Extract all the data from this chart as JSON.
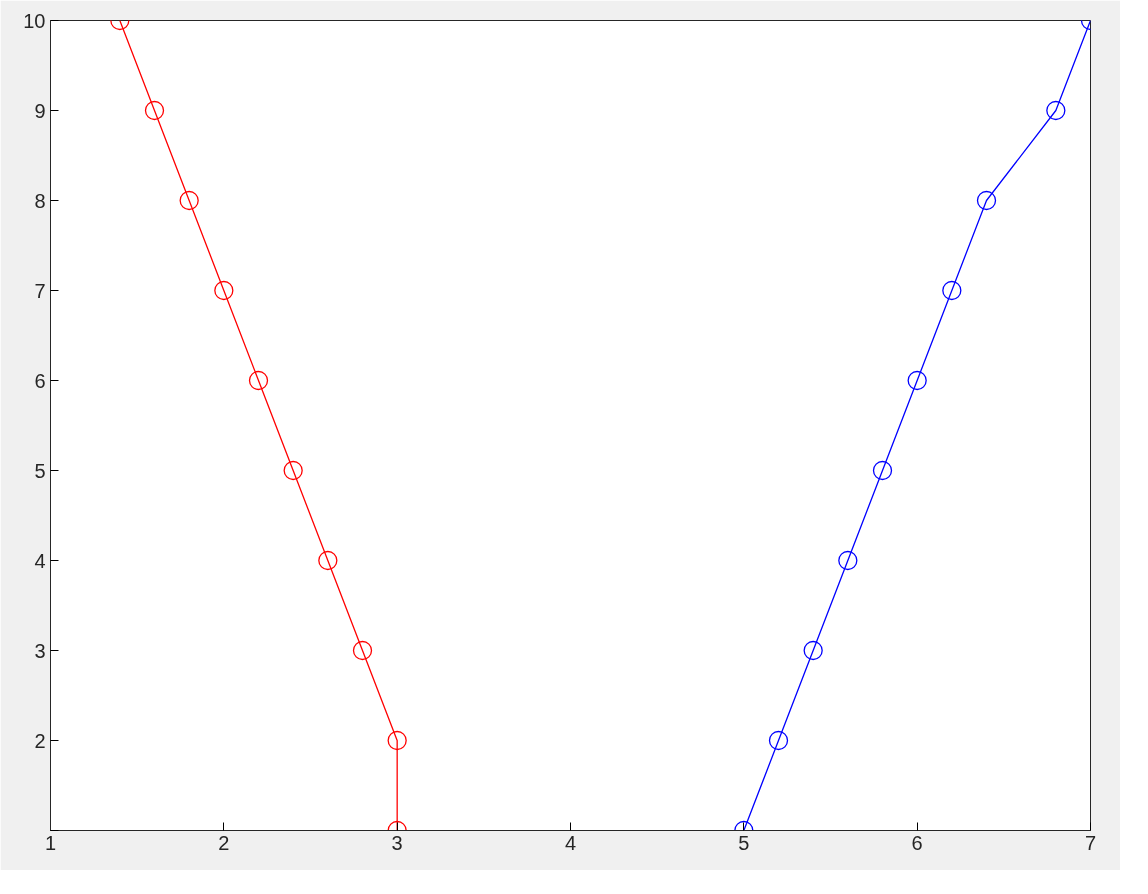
{
  "chart_data": {
    "type": "line",
    "x": [
      1,
      2,
      3,
      4,
      5,
      6,
      7,
      8,
      9,
      10
    ],
    "xlim": [
      1,
      7
    ],
    "xticks": [
      1,
      2,
      3,
      4,
      5,
      6,
      7
    ],
    "ylim": [
      1,
      10
    ],
    "yticks": [
      {
        "value": 1,
        "label": null
      },
      2,
      3,
      4,
      5,
      6,
      7,
      8,
      9,
      10
    ],
    "orientation": "horizontal",
    "marker": "circle",
    "series": [
      {
        "color": "#ff0000",
        "values": [
          3.0,
          3.0,
          2.8,
          2.6,
          2.4,
          2.2,
          2.0,
          1.8,
          1.6,
          1.4
        ]
      },
      {
        "color": "#0000ff",
        "values": [
          5.0,
          5.2,
          5.4,
          5.6,
          5.8,
          6.0,
          6.2,
          6.4,
          6.8,
          7.0
        ]
      }
    ]
  }
}
